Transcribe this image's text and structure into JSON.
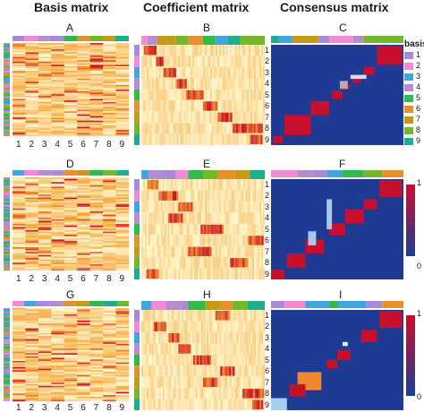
{
  "titles": {
    "basis": "Basis matrix",
    "coefficient": "Coefficient matrix",
    "consensus": "Consensus matrix"
  },
  "panels": [
    "A",
    "B",
    "C",
    "D",
    "E",
    "F",
    "G",
    "H",
    "I"
  ],
  "x_ticks": [
    "1",
    "2",
    "3",
    "4",
    "5",
    "6",
    "7",
    "8",
    "9"
  ],
  "row_ticks": [
    "1",
    "2",
    "3",
    "4",
    "5",
    "6",
    "7",
    "8",
    "9"
  ],
  "legend": {
    "title": "basis",
    "items": [
      {
        "label": "1",
        "color": "#a78bd8"
      },
      {
        "label": "2",
        "color": "#f28ad6"
      },
      {
        "label": "3",
        "color": "#41a6e0"
      },
      {
        "label": "4",
        "color": "#b58ed0"
      },
      {
        "label": "5",
        "color": "#2fba4a"
      },
      {
        "label": "6",
        "color": "#e5902a"
      },
      {
        "label": "7",
        "color": "#c49a18"
      },
      {
        "label": "8",
        "color": "#74b82a"
      },
      {
        "label": "9",
        "color": "#1fae8c"
      }
    ]
  },
  "colorbar": {
    "top_label": "1",
    "bottom_label": "0"
  },
  "colors": {
    "heat_low": "#fff8d0",
    "heat_mid": "#f5a030",
    "heat_high": "#c8102e",
    "consensus_bg": "#1f3a93",
    "consensus_block": "#c8102e"
  }
}
